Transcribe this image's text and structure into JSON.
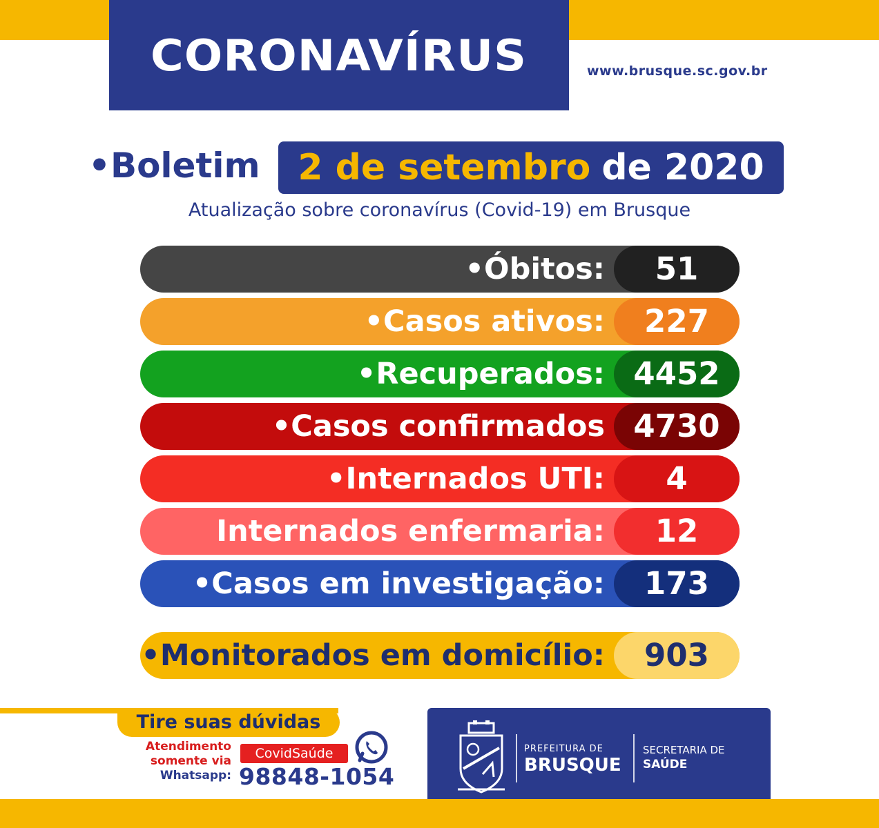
{
  "header": {
    "title": "CORONAVÍRUS",
    "website": "www.brusque.sc.gov.br"
  },
  "bulletin": {
    "label": "•Boletim",
    "date_highlight": "2 de setembro",
    "date_rest": "de 2020",
    "subtitle": "Atualização sobre coronavírus (Covid-19) em Brusque"
  },
  "stats": [
    {
      "label": "•Óbitos:",
      "value": "51",
      "color": "#454545",
      "value_color": "#212121"
    },
    {
      "label": "•Casos ativos:",
      "value": "227",
      "color": "#f4a12b",
      "value_color": "#f07f1e"
    },
    {
      "label": "•Recuperados:",
      "value": "4452",
      "color": "#13a21f",
      "value_color": "#0a6b15"
    },
    {
      "label": "•Casos confirmados",
      "value": "4730",
      "color": "#c30c0c",
      "value_color": "#7a0404"
    },
    {
      "label": "•Internados UTI:",
      "value": "4",
      "color": "#f42d24",
      "value_color": "#d81414"
    },
    {
      "label": "Internados enfermaria:",
      "value": "12",
      "color": "#ff6464",
      "value_color": "#f22e2e"
    },
    {
      "label": "•Casos em investigação:",
      "value": "173",
      "color": "#2a52b8",
      "value_color": "#142f7c"
    }
  ],
  "monitored": {
    "label": "•Monitorados em domicílio:",
    "value": "903"
  },
  "contact": {
    "title": "Tire suas dúvidas",
    "line1": "Atendimento",
    "line2": "somente via",
    "line3": "Whatsapp:",
    "tag": "CovidSaúde",
    "phone": "98848-1054"
  },
  "logo": {
    "prefeitura_line1": "PREFEITURA DE",
    "prefeitura_line2": "BRUSQUE",
    "secretaria_line1": "SECRETARIA DE",
    "secretaria_line2": "SAÚDE"
  },
  "colors": {
    "navy": "#2a3a8c",
    "yellow": "#f6b700"
  }
}
